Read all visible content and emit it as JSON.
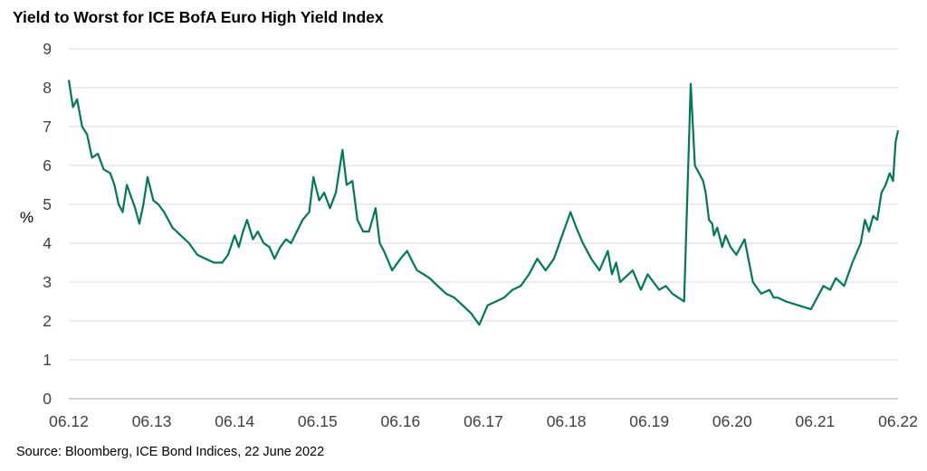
{
  "title": "Yield to Worst for ICE BofA Euro High Yield Index",
  "source": "Source: Bloomberg, ICE Bond Indices, 22 June 2022",
  "chart_data": {
    "type": "line",
    "title": "Yield to Worst for ICE BofA Euro High Yield Index",
    "ylabel": "%",
    "xlabel": "",
    "ylim": [
      0,
      9
    ],
    "yticks": [
      "0",
      "1",
      "2",
      "3",
      "4",
      "5",
      "6",
      "7",
      "8",
      "9"
    ],
    "xticks": [
      "06.12",
      "06.13",
      "06.14",
      "06.15",
      "06.16",
      "06.17",
      "06.18",
      "06.19",
      "06.20",
      "06.21",
      "06.22"
    ],
    "xlim": [
      2012.5,
      2022.5
    ],
    "grid": true,
    "legend": "none",
    "color": "#007A53",
    "series": [
      {
        "x": [
          2012.5,
          2012.55,
          2012.6,
          2012.66,
          2012.72,
          2012.78,
          2012.85,
          2012.92,
          2013.0,
          2013.05,
          2013.1,
          2013.15,
          2013.2,
          2013.25,
          2013.3,
          2013.35,
          2013.4,
          2013.45,
          2013.52,
          2013.58,
          2013.65,
          2013.75,
          2013.85,
          2013.95,
          2014.05,
          2014.15,
          2014.25,
          2014.35,
          2014.42,
          2014.5,
          2014.55,
          2014.6,
          2014.65,
          2014.72,
          2014.78,
          2014.85,
          2014.92,
          2014.98,
          2015.05,
          2015.12,
          2015.18,
          2015.25,
          2015.32,
          2015.4,
          2015.45,
          2015.52,
          2015.58,
          2015.65,
          2015.72,
          2015.8,
          2015.85,
          2015.92,
          2015.98,
          2016.05,
          2016.12,
          2016.2,
          2016.25,
          2016.3,
          2016.4,
          2016.5,
          2016.58,
          2016.65,
          2016.7,
          2016.78,
          2016.85,
          2016.95,
          2017.05,
          2017.15,
          2017.25,
          2017.35,
          2017.45,
          2017.55,
          2017.65,
          2017.75,
          2017.85,
          2017.95,
          2018.05,
          2018.15,
          2018.25,
          2018.35,
          2018.45,
          2018.55,
          2018.62,
          2018.7,
          2018.8,
          2018.9,
          2019.0,
          2019.05,
          2019.1,
          2019.15,
          2019.2,
          2019.3,
          2019.4,
          2019.48,
          2019.55,
          2019.62,
          2019.7,
          2019.78,
          2019.85,
          2019.92,
          2020.0,
          2020.05,
          2020.1,
          2020.15,
          2020.18,
          2020.22,
          2020.26,
          2020.28,
          2020.32,
          2020.38,
          2020.42,
          2020.48,
          2020.55,
          2020.65,
          2020.75,
          2020.85,
          2020.95,
          2021.0,
          2021.05,
          2021.15,
          2021.3,
          2021.45,
          2021.6,
          2021.68,
          2021.75,
          2021.85,
          2021.95,
          2022.05,
          2022.1,
          2022.15,
          2022.2,
          2022.25,
          2022.3,
          2022.35,
          2022.4,
          2022.44,
          2022.47,
          2022.5
        ],
        "y": [
          8.2,
          7.5,
          7.7,
          7.0,
          6.8,
          6.2,
          6.3,
          5.9,
          5.8,
          5.5,
          5.0,
          4.8,
          5.5,
          5.2,
          4.9,
          4.5,
          5.0,
          5.7,
          5.1,
          5.0,
          4.8,
          4.4,
          4.2,
          4.0,
          3.7,
          3.6,
          3.5,
          3.5,
          3.7,
          4.2,
          3.9,
          4.3,
          4.6,
          4.1,
          4.3,
          4.0,
          3.9,
          3.6,
          3.9,
          4.1,
          4.0,
          4.3,
          4.6,
          4.8,
          5.7,
          5.1,
          5.3,
          4.9,
          5.3,
          6.4,
          5.5,
          5.6,
          4.6,
          4.3,
          4.3,
          4.9,
          4.0,
          3.8,
          3.3,
          3.6,
          3.8,
          3.5,
          3.3,
          3.2,
          3.1,
          2.9,
          2.7,
          2.6,
          2.4,
          2.2,
          1.9,
          2.4,
          2.5,
          2.6,
          2.8,
          2.9,
          3.2,
          3.6,
          3.3,
          3.6,
          4.2,
          4.8,
          4.4,
          4.0,
          3.6,
          3.3,
          3.8,
          3.2,
          3.5,
          3.0,
          3.1,
          3.3,
          2.8,
          3.2,
          3.0,
          2.8,
          2.9,
          2.7,
          2.6,
          2.5,
          8.1,
          6.0,
          5.8,
          5.6,
          5.3,
          4.6,
          4.5,
          4.2,
          4.4,
          3.9,
          4.2,
          3.9,
          3.7,
          4.1,
          3.0,
          2.7,
          2.8,
          2.6,
          2.6,
          2.5,
          2.4,
          2.3,
          2.9,
          2.8,
          3.1,
          2.9,
          3.5,
          4.0,
          4.6,
          4.3,
          4.7,
          4.6,
          5.3,
          5.5,
          5.8,
          5.6,
          6.6,
          6.9
        ]
      }
    ]
  }
}
